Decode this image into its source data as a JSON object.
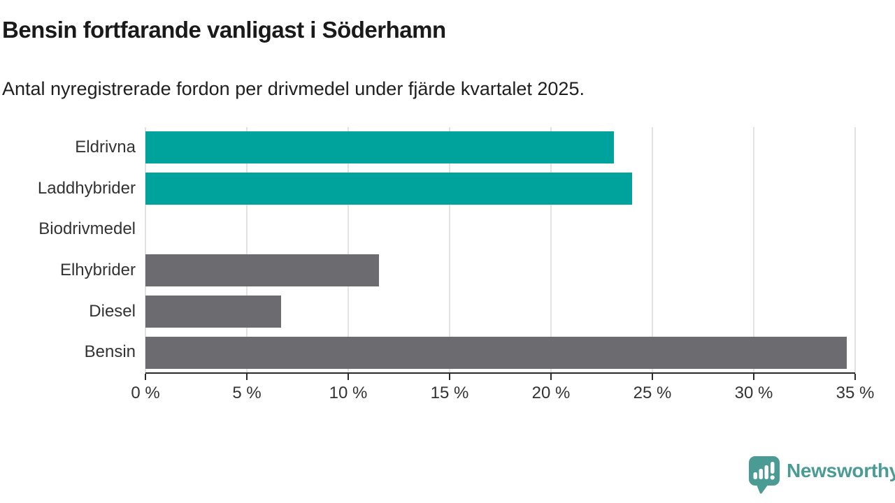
{
  "header": {
    "title": "Bensin fortfarande vanligast i Söderhamn",
    "subtitle": "Antal nyregistrerade fordon per drivmedel under fjärde kvartalet 2025."
  },
  "chart_data": {
    "type": "bar",
    "orientation": "horizontal",
    "title": "Bensin fortfarande vanligast i Söderhamn",
    "subtitle": "Antal nyregistrerade fordon per drivmedel under fjärde kvartalet 2025.",
    "categories": [
      "Eldrivna",
      "Laddhybrider",
      "Biodrivmedel",
      "Elhybrider",
      "Diesel",
      "Bensin"
    ],
    "values": [
      23.1,
      24.0,
      0,
      11.5,
      6.7,
      34.6
    ],
    "unit": "%",
    "bar_colors": [
      "#00a39b",
      "#00a39b",
      "#6c6b70",
      "#6c6b70",
      "#6c6b70",
      "#6c6b70"
    ],
    "highlight_color": "#00a39b",
    "default_color": "#6c6b70",
    "xlim": [
      0,
      35
    ],
    "x_ticks": [
      0,
      5,
      10,
      15,
      20,
      25,
      30,
      35
    ],
    "x_tick_labels": [
      "0 %",
      "5 %",
      "10 %",
      "15 %",
      "20 %",
      "25 %",
      "30 %",
      "35 %"
    ],
    "grid": true,
    "gridline_color": "#e2e2e2",
    "axis_color": "#2b2b2b",
    "legend": "none"
  },
  "branding": {
    "logo_text": "Newsworthy",
    "logo_color": "#4a9b94",
    "logo_icon": "newsworthy-speech-bubble-chart-icon"
  }
}
